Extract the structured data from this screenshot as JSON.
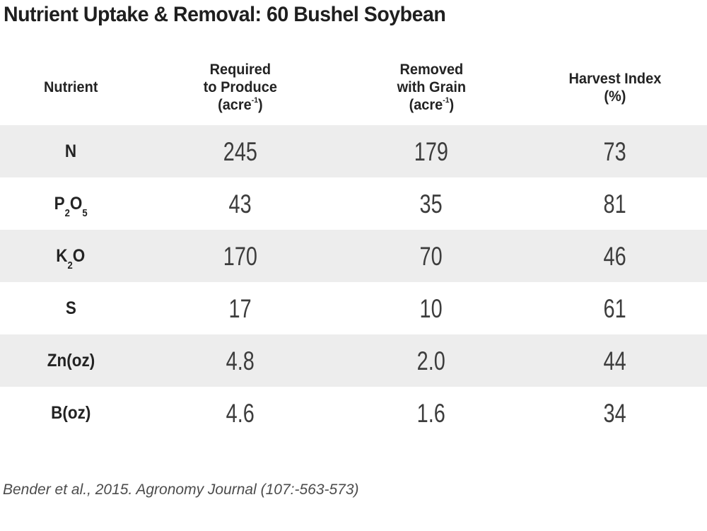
{
  "title": "Nutrient Uptake & Removal: 60 Bushel Soybean",
  "source": "Bender et al., 2015. Agronomy Journal (107:-563-573)",
  "colors": {
    "background": "#ffffff",
    "row_stripe": "#ededed",
    "title_text": "#1f1f1f",
    "header_text": "#232323",
    "number_text": "#3d3d3d",
    "source_text": "#4c4c4c"
  },
  "table": {
    "headers": [
      {
        "parts": [
          {
            "t": "Nutrient"
          }
        ]
      },
      {
        "parts": [
          {
            "t": "Required"
          },
          {
            "s": "br"
          },
          {
            "t": "to Produce"
          },
          {
            "s": "br"
          },
          {
            "t": "(acre"
          },
          {
            "t": "-1",
            "s": "sup"
          },
          {
            "t": ")"
          }
        ]
      },
      {
        "parts": [
          {
            "t": "Removed"
          },
          {
            "s": "br"
          },
          {
            "t": "with Grain"
          },
          {
            "s": "br"
          },
          {
            "t": "(acre"
          },
          {
            "t": "-1",
            "s": "sup"
          },
          {
            "t": ")"
          }
        ]
      },
      {
        "parts": [
          {
            "t": "Harvest Index"
          },
          {
            "s": "br"
          },
          {
            "t": "(%)"
          }
        ]
      }
    ],
    "rows": [
      {
        "nutrient_parts": [
          {
            "t": "N"
          }
        ],
        "required": "245",
        "removed": "179",
        "harvest_index": "73"
      },
      {
        "nutrient_parts": [
          {
            "t": "P"
          },
          {
            "t": "2",
            "s": "sub"
          },
          {
            "t": "O"
          },
          {
            "t": "5",
            "s": "sub"
          }
        ],
        "required": "43",
        "removed": "35",
        "harvest_index": "81"
      },
      {
        "nutrient_parts": [
          {
            "t": "K"
          },
          {
            "t": "2",
            "s": "sub"
          },
          {
            "t": "O"
          }
        ],
        "required": "170",
        "removed": "70",
        "harvest_index": "46"
      },
      {
        "nutrient_parts": [
          {
            "t": "S"
          }
        ],
        "required": "17",
        "removed": "10",
        "harvest_index": "61"
      },
      {
        "nutrient_parts": [
          {
            "t": "Zn(oz)"
          }
        ],
        "required": "4.8",
        "removed": "2.0",
        "harvest_index": "44"
      },
      {
        "nutrient_parts": [
          {
            "t": "B(oz)"
          }
        ],
        "required": "4.6",
        "removed": "1.6",
        "harvest_index": "34"
      }
    ]
  },
  "chart_data": {
    "type": "table",
    "title": "Nutrient Uptake & Removal: 60 Bushel Soybean",
    "columns": [
      "Nutrient",
      "Required to Produce (acre⁻¹)",
      "Removed with Grain (acre⁻¹)",
      "Harvest Index (%)"
    ],
    "rows": [
      [
        "N",
        245,
        179,
        73
      ],
      [
        "P₂O₅",
        43,
        35,
        81
      ],
      [
        "K₂O",
        170,
        70,
        46
      ],
      [
        "S",
        17,
        10,
        61
      ],
      [
        "Zn(oz)",
        4.8,
        2.0,
        44
      ],
      [
        "B(oz)",
        4.6,
        1.6,
        34
      ]
    ],
    "source": "Bender et al., 2015. Agronomy Journal (107:-563-573)",
    "layout_hints": "alternating light-gray stripes on data rows 1, 3, 5 (N, K2O, Zn); all cells centered; no borders"
  }
}
